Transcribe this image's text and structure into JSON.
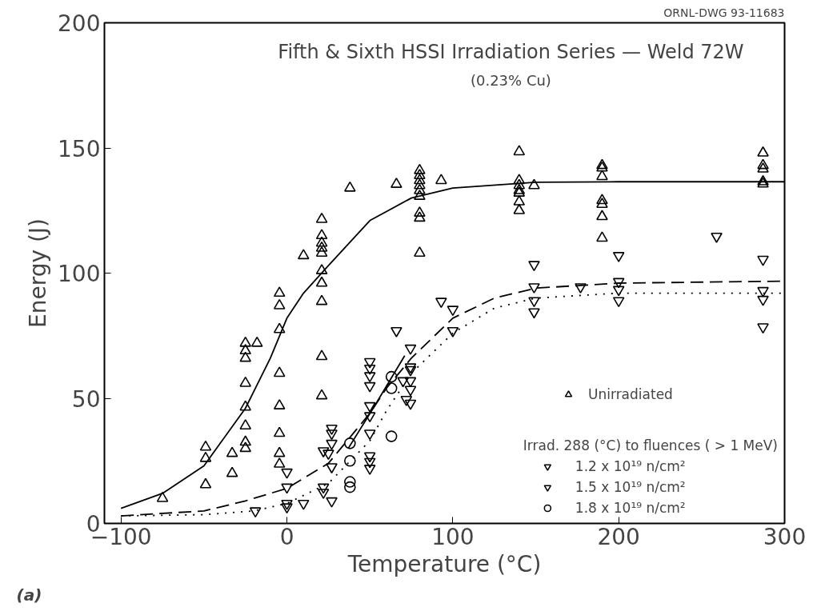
{
  "chart_data": {
    "type": "scatter",
    "title": "Fifth & Sixth HSSI Irradiation Series — Weld 72W",
    "subtitle": "(0.23% Cu)",
    "xlabel": "Temperature (°C)",
    "ylabel": "Energy (J)",
    "legend_title": "Irrad. 288 (°C) to fluences ( > 1 MeV)",
    "annotations": [
      "ORNL-DWG 93-11683",
      "(a)"
    ],
    "xlim": [
      -110,
      300
    ],
    "ylim": [
      0,
      200
    ],
    "xticks": [
      -100,
      0,
      100,
      200,
      300
    ],
    "yticks": [
      0,
      50,
      100,
      150,
      200
    ],
    "grid": false,
    "legend": "bottom right",
    "series": [
      {
        "name": "Unirradiated",
        "marker": "triangle",
        "color": "#000000",
        "x": [
          -75,
          -49,
          -49,
          -49,
          -33,
          -33,
          -25,
          -25,
          -25,
          -25,
          -25,
          -25,
          -25,
          -25,
          -18,
          -4.5,
          -4.5,
          -4.5,
          -4.5,
          -4.5,
          -4.5,
          -4.5,
          -4.5,
          10,
          21,
          21,
          21,
          21,
          21,
          21,
          21,
          21,
          21,
          21,
          38,
          66,
          80,
          80,
          80,
          80,
          80,
          80,
          80,
          80,
          80,
          93,
          140,
          140,
          140,
          140,
          140,
          140,
          140,
          149,
          190,
          190,
          190,
          190,
          190,
          190,
          190,
          287,
          287,
          287,
          287,
          287
        ],
        "values": [
          10,
          30.5,
          26,
          15.5,
          28,
          20,
          72,
          69,
          66,
          56,
          46.5,
          39,
          32.5,
          30,
          72,
          92,
          87,
          77.5,
          60,
          47,
          36,
          28,
          23.7,
          107,
          121.5,
          115,
          112,
          110,
          108,
          101,
          96,
          88.7,
          66.7,
          51,
          134,
          135.5,
          141,
          139,
          137,
          135,
          133,
          130.7,
          124,
          122,
          108,
          137,
          148.5,
          137,
          135,
          133,
          132,
          128.5,
          125,
          135,
          143,
          142,
          138.6,
          129,
          127.5,
          122.6,
          114,
          148,
          143,
          141.6,
          136.5,
          135.6
        ]
      },
      {
        "name": "1.2 x 10¹⁹ n/cm²",
        "color": "#000000",
        "x": [
          0,
          22,
          25,
          22,
          22,
          50,
          50,
          50,
          50,
          70,
          72,
          74.5,
          100,
          200,
          200,
          287
        ],
        "values": [
          6.6,
          29,
          28,
          14.5,
          12.4,
          36,
          27,
          24.7,
          22,
          57,
          49.5,
          62.5,
          85.5,
          96.6,
          89,
          89.5
        ]
      },
      {
        "name": "1.5 x 10¹⁹ n/cm²",
        "color": "#000000",
        "x": [
          -19,
          0,
          0,
          0,
          10,
          27,
          27,
          27,
          27,
          27,
          50,
          50,
          50,
          50,
          50,
          50,
          66,
          74.5,
          74.5,
          74.5,
          74.5,
          74.5,
          93,
          100,
          149,
          149,
          149,
          149,
          177,
          200,
          200,
          259,
          287,
          287,
          287
        ],
        "values": [
          5,
          8,
          20.5,
          14.5,
          8,
          38,
          36,
          32,
          22.6,
          9,
          64.6,
          62,
          59,
          55,
          47,
          43,
          77,
          70,
          61.4,
          57,
          53.5,
          48,
          88.7,
          77,
          103.4,
          94.5,
          89,
          84.5,
          94.5,
          107,
          93.4,
          114.7,
          105.5,
          93,
          78.5
        ]
      },
      {
        "name": "1.8 x 10¹⁹ n/cm²",
        "marker": "circle",
        "color": "#000000",
        "x": [
          38,
          38,
          38,
          38,
          63,
          63,
          63
        ],
        "values": [
          32,
          25,
          16.6,
          14.5,
          58.6,
          54,
          34.8
        ]
      },
      {
        "type": "line",
        "line_style": "solid",
        "color": "#000000",
        "x": [
          -100,
          -75,
          -50,
          -25,
          -10,
          0,
          10,
          25,
          50,
          75,
          100,
          150,
          200,
          300
        ],
        "values": [
          6,
          12,
          23,
          46,
          66,
          82,
          92,
          103,
          121,
          130,
          134,
          136.3,
          136.5,
          136.5
        ]
      },
      {
        "type": "line",
        "line_style": "dotted",
        "color": "#000000",
        "x": [
          -100,
          -50,
          -20,
          0,
          25,
          50,
          60,
          75,
          100,
          125,
          150,
          200,
          300
        ],
        "values": [
          3,
          3.5,
          5,
          8,
          16,
          33,
          45,
          60,
          76,
          86,
          90,
          92,
          92
        ]
      },
      {
        "type": "line",
        "line_style": "dashed",
        "color": "#000000",
        "x": [
          -100,
          -50,
          -25,
          0,
          25,
          40,
          50,
          60,
          75,
          100,
          125,
          150,
          200,
          300
        ],
        "values": [
          3,
          5,
          9,
          14,
          24,
          36,
          44,
          54,
          66,
          82,
          90,
          94,
          96,
          96.8
        ]
      },
      {
        "type": "line",
        "line_style": "solid",
        "color": "#000000",
        "x": [
          37,
          52,
          71
        ],
        "values": [
          30,
          46,
          67
        ]
      }
    ]
  }
}
